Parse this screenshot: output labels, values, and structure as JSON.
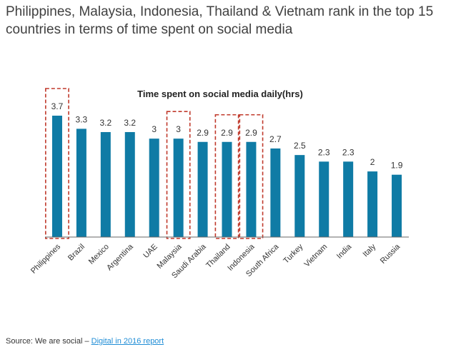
{
  "headline": "Philippines, Malaysia, Indonesia, Thailand & Vietnam rank in the top 15 countries in terms of time spent on social media",
  "source": {
    "prefix": "Source: We are social – ",
    "link_text": "Digital in 2016 report"
  },
  "colors": {
    "bar": "#0f7ba5",
    "highlight": "#c0392b",
    "axis": "#666666"
  },
  "chart_data": {
    "type": "bar",
    "title": "Time spent on social media daily(hrs)",
    "xlabel": "",
    "ylabel": "",
    "ylim": [
      0,
      3.7
    ],
    "categories": [
      "Philippines",
      "Brazil",
      "Mexico",
      "Argentina",
      "UAE",
      "Malaysia",
      "Saudi Arabia",
      "Thailand",
      "Indonesia",
      "South Africa",
      "Turkey",
      "Vietnam",
      "India",
      "Italy",
      "Russia"
    ],
    "values": [
      3.7,
      3.3,
      3.2,
      3.2,
      3,
      3,
      2.9,
      2.9,
      2.9,
      2.7,
      2.5,
      2.3,
      2.3,
      2,
      1.9
    ],
    "value_labels": [
      "3.7",
      "3.3",
      "3.2",
      "3.2",
      "3",
      "3",
      "2.9",
      "2.9",
      "2.9",
      "2.7",
      "2.5",
      "2.3",
      "2.3",
      "2",
      "1.9"
    ],
    "highlighted": [
      "Philippines",
      "Malaysia",
      "Thailand",
      "Indonesia"
    ],
    "legend": "none",
    "grid": false
  }
}
